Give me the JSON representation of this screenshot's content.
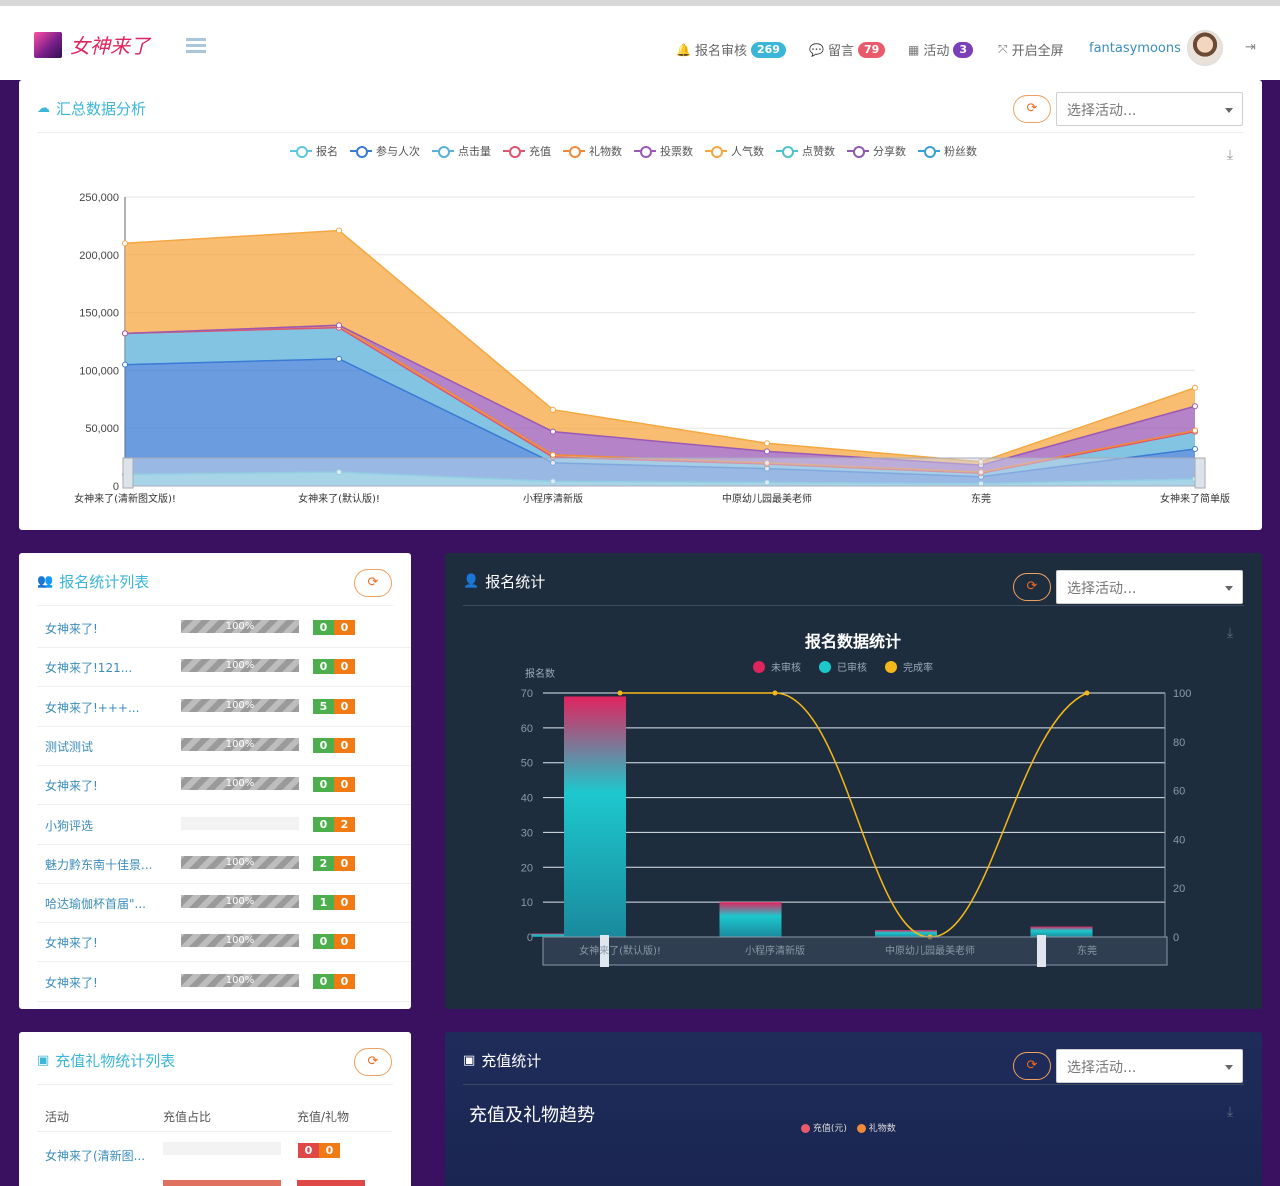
{
  "header": {
    "logo_text": "女神来了",
    "nav": [
      {
        "icon": "bell-icon",
        "label": "报名审核",
        "badge": "269",
        "badge_color": "#3cb6d8"
      },
      {
        "icon": "comment-icon",
        "label": "留言",
        "badge": "79",
        "badge_color": "#e95b6c"
      },
      {
        "icon": "calendar-icon",
        "label": "活动",
        "badge": "3",
        "badge_color": "#7b3fb8"
      },
      {
        "icon": "fullscreen-icon",
        "label": "开启全屏",
        "badge": "",
        "badge_color": ""
      }
    ],
    "username": "fantasymoons"
  },
  "summary": {
    "title": "汇总数据分析",
    "select_placeholder": "选择活动...",
    "legend": [
      "报名",
      "参与人次",
      "点击量",
      "充值",
      "礼物数",
      "投票数",
      "人气数",
      "点赞数",
      "分享数",
      "粉丝数"
    ],
    "legend_colors": [
      "#5ec6df",
      "#3a7bd5",
      "#5ab0d8",
      "#e05470",
      "#f08a3a",
      "#9b59b6",
      "#f5a742",
      "#4ec3c9",
      "#8e5bb0",
      "#3a9ed8"
    ]
  },
  "chart_data": [
    {
      "type": "area",
      "title": "",
      "categories": [
        "女神来了(清新图文版)!",
        "女神来了(默认版)!",
        "小程序清新版",
        "中原幼儿园最美老师",
        "东莞",
        "女神来了简单版"
      ],
      "ylim": [
        0,
        250000
      ],
      "yticks": [
        "0",
        "50,000",
        "100,000",
        "150,000",
        "200,000",
        "250,000"
      ],
      "stacked": true,
      "series": [
        {
          "name": "报名",
          "values": [
            10000,
            12000,
            4000,
            3000,
            2000,
            6000
          ],
          "color": "#5ec6df"
        },
        {
          "name": "参与人次",
          "values": [
            95000,
            98000,
            16000,
            12000,
            6000,
            26000
          ],
          "color": "#3a7bd5"
        },
        {
          "name": "点击量",
          "values": [
            27000,
            27000,
            5000,
            4000,
            3000,
            15000
          ],
          "color": "#5ab0d8"
        },
        {
          "name": "充值",
          "values": [
            0,
            0,
            0,
            0,
            0,
            0
          ],
          "color": "#e05470"
        },
        {
          "name": "礼物数",
          "values": [
            0,
            2000,
            2000,
            1000,
            1000,
            1000
          ],
          "color": "#f08a3a"
        },
        {
          "name": "投票数",
          "values": [
            0,
            0,
            20000,
            10000,
            6000,
            21000
          ],
          "color": "#9b59b6"
        },
        {
          "name": "人气数",
          "values": [
            78000,
            82000,
            19000,
            7000,
            3000,
            16000
          ],
          "color": "#f5a742"
        }
      ],
      "grid": true,
      "legend_position": "top"
    },
    {
      "type": "bar",
      "title": "报名数据统计",
      "categories": [
        "女神来了(清新图文版)!",
        "女神来了(默认版)!",
        "小程序清新版",
        "中原幼儿园最美老师",
        "东莞"
      ],
      "xtick_labels": [
        "女神来了(默认版)!",
        "小程序清新版",
        "中原幼儿园最美老师",
        "东莞"
      ],
      "ylabel": "报名数",
      "ylim": [
        0,
        70
      ],
      "y2lim": [
        0,
        100
      ],
      "yticks": [
        "0",
        "10",
        "20",
        "30",
        "40",
        "50",
        "60",
        "70"
      ],
      "y2ticks": [
        "0",
        "20",
        "40",
        "60",
        "80",
        "100"
      ],
      "series": [
        {
          "name": "未审核",
          "values": [
            1,
            69,
            10,
            2,
            3
          ],
          "color": "#e0245e"
        },
        {
          "name": "已审核",
          "values": [
            0,
            0,
            0,
            0,
            0
          ],
          "color": "#1dc8cd"
        },
        {
          "name": "完成率",
          "values": [
            100,
            100,
            0,
            100,
            100
          ],
          "color": "#f5b81a",
          "axis": "right",
          "kind": "line"
        }
      ],
      "legend_position": "top"
    }
  ],
  "signup_list": {
    "title": "报名统计列表",
    "rows": [
      {
        "name": "女神来了!",
        "progress_text": "100%",
        "progress": 1.0,
        "a": "0",
        "b": "0"
      },
      {
        "name": "女神来了!121...",
        "progress_text": "100%",
        "progress": 1.0,
        "a": "0",
        "b": "0"
      },
      {
        "name": "女神来了!+++...",
        "progress_text": "100%",
        "progress": 1.0,
        "a": "5",
        "b": "0"
      },
      {
        "name": "测试测试",
        "progress_text": "100%",
        "progress": 1.0,
        "a": "0",
        "b": "0"
      },
      {
        "name": "女神来了!",
        "progress_text": "100%",
        "progress": 1.0,
        "a": "0",
        "b": "0"
      },
      {
        "name": "小狗评选",
        "progress_text": "",
        "progress": 0.0,
        "a": "0",
        "b": "2"
      },
      {
        "name": "魅力黔东南十佳景...",
        "progress_text": "100%",
        "progress": 1.0,
        "a": "2",
        "b": "0"
      },
      {
        "name": "哈达瑜伽杯首届\"...",
        "progress_text": "100%",
        "progress": 1.0,
        "a": "1",
        "b": "0"
      },
      {
        "name": "女神来了!",
        "progress_text": "100%",
        "progress": 1.0,
        "a": "0",
        "b": "0"
      },
      {
        "name": "女神来了!",
        "progress_text": "100%",
        "progress": 1.0,
        "a": "0",
        "b": "0"
      }
    ]
  },
  "signup_stats": {
    "title": "报名统计",
    "select_placeholder": "选择活动..."
  },
  "recharge_list": {
    "title": "充值礼物统计列表",
    "headers": [
      "活动",
      "充值占比",
      "充值/礼物"
    ],
    "rows": [
      {
        "name": "女神来了(清新图...",
        "a": "0",
        "b": "0"
      }
    ]
  },
  "recharge_stats": {
    "title": "充值统计",
    "select_placeholder": "选择活动...",
    "chart_title": "充值及礼物趋势",
    "legend": [
      "充值(元)",
      "礼物数"
    ],
    "legend_colors": [
      "#e95b6c",
      "#f08a3a"
    ]
  }
}
